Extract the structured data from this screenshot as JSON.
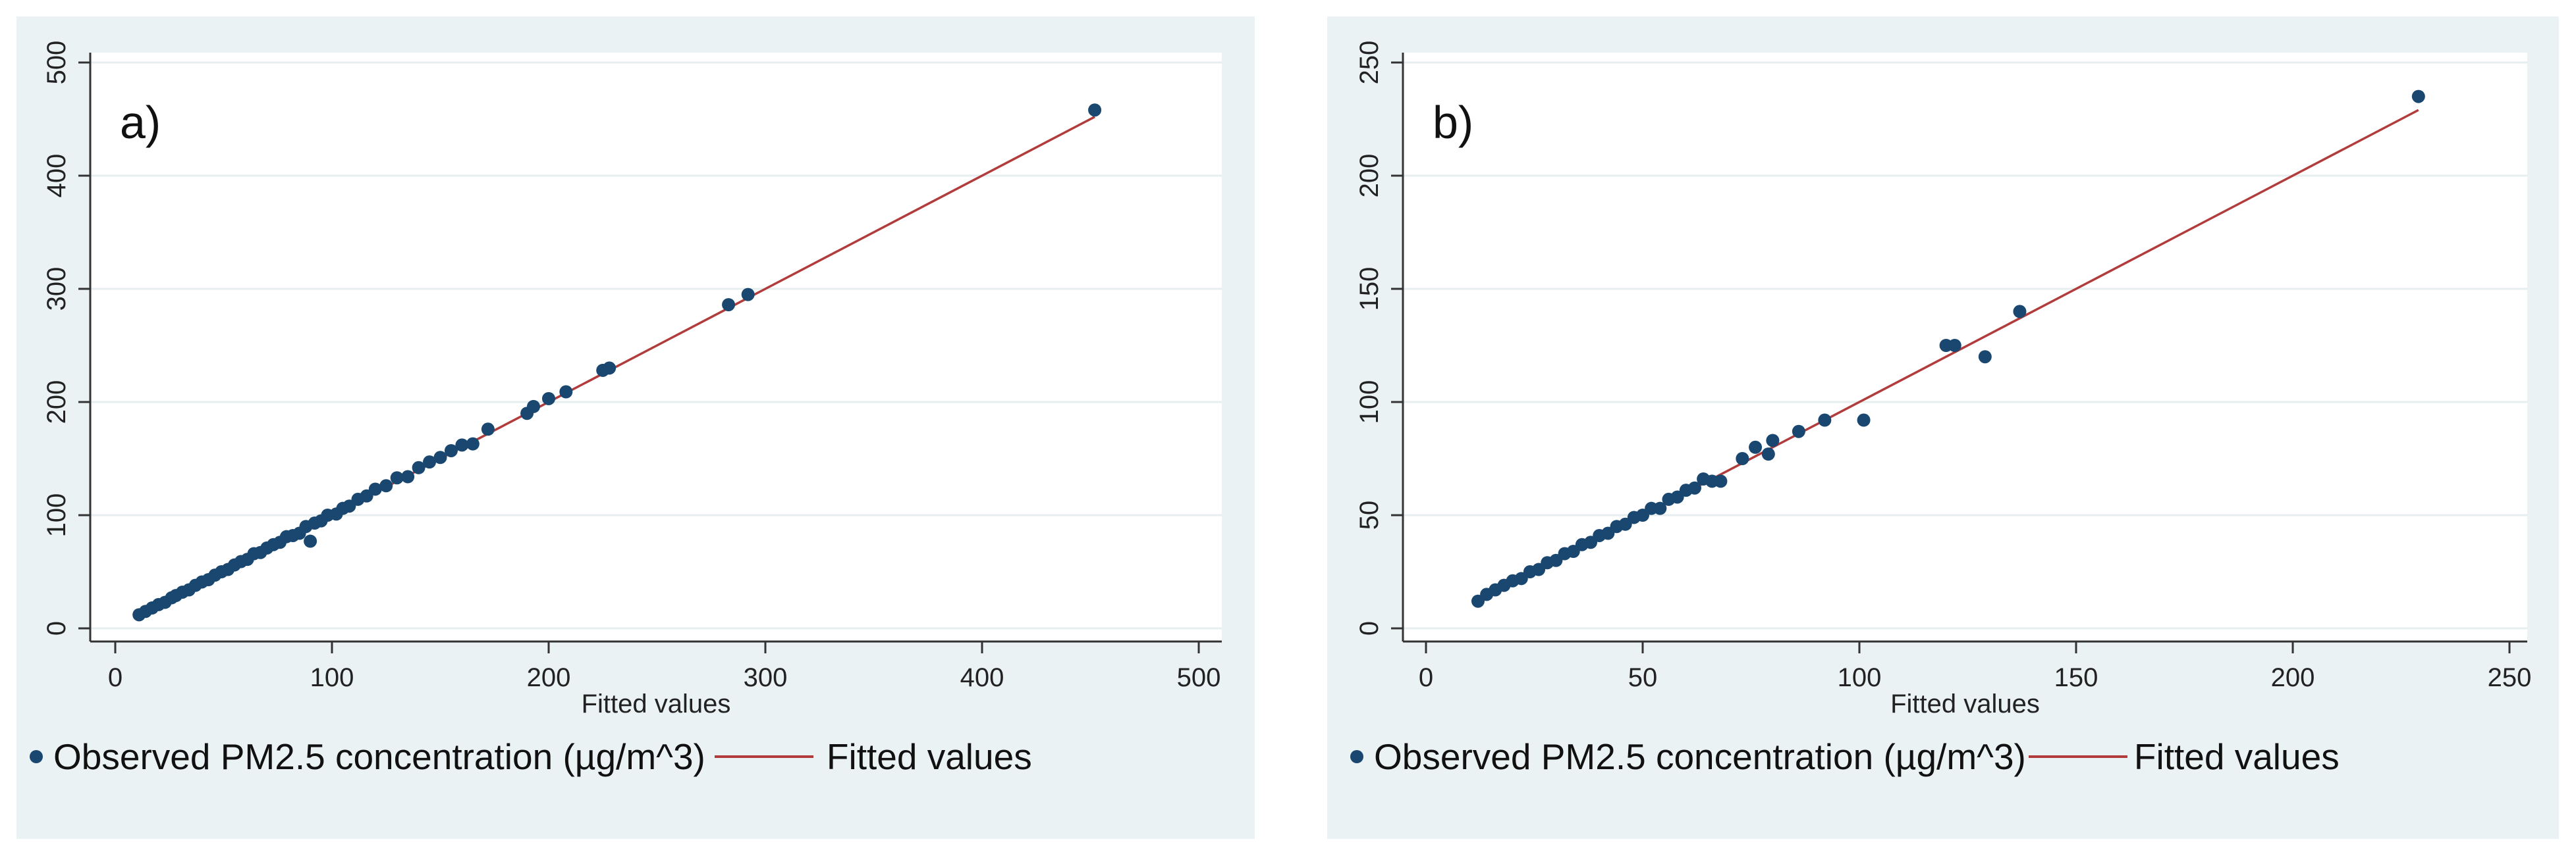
{
  "chart_data": [
    {
      "type": "scatter",
      "panel_label": "a)",
      "xlabel": "Fitted values",
      "ylabel": "",
      "xlim": [
        0,
        500
      ],
      "ylim": [
        0,
        500
      ],
      "xticks": [
        "0",
        "100",
        "200",
        "300",
        "400",
        "500"
      ],
      "yticks": [
        "0",
        "100",
        "200",
        "300",
        "400",
        "500"
      ],
      "grid": true,
      "legend": "bottom",
      "series": [
        {
          "name": "Observed PM2.5 concentration (µg/m^3)",
          "kind": "points",
          "color": "#1a476f",
          "points": [
            [
              11,
              12
            ],
            [
              14,
              15
            ],
            [
              17,
              18
            ],
            [
              20,
              21
            ],
            [
              23,
              23
            ],
            [
              26,
              27
            ],
            [
              28,
              29
            ],
            [
              31,
              32
            ],
            [
              34,
              34
            ],
            [
              37,
              38
            ],
            [
              40,
              41
            ],
            [
              43,
              43
            ],
            [
              46,
              47
            ],
            [
              49,
              50
            ],
            [
              52,
              52
            ],
            [
              55,
              56
            ],
            [
              58,
              59
            ],
            [
              61,
              61
            ],
            [
              64,
              66
            ],
            [
              67,
              67
            ],
            [
              70,
              71
            ],
            [
              73,
              74
            ],
            [
              76,
              76
            ],
            [
              79,
              81
            ],
            [
              82,
              82
            ],
            [
              85,
              84
            ],
            [
              88,
              90
            ],
            [
              90,
              77
            ],
            [
              92,
              93
            ],
            [
              95,
              95
            ],
            [
              98,
              100
            ],
            [
              102,
              101
            ],
            [
              105,
              106
            ],
            [
              108,
              108
            ],
            [
              112,
              114
            ],
            [
              116,
              117
            ],
            [
              120,
              123
            ],
            [
              125,
              126
            ],
            [
              130,
              133
            ],
            [
              135,
              134
            ],
            [
              140,
              142
            ],
            [
              145,
              147
            ],
            [
              150,
              151
            ],
            [
              155,
              157
            ],
            [
              160,
              162
            ],
            [
              165,
              163
            ],
            [
              172,
              176
            ],
            [
              190,
              190
            ],
            [
              193,
              196
            ],
            [
              200,
              203
            ],
            [
              208,
              209
            ],
            [
              225,
              228
            ],
            [
              228,
              230
            ],
            [
              283,
              286
            ],
            [
              292,
              295
            ],
            [
              452,
              458
            ]
          ]
        },
        {
          "name": "Fitted values",
          "kind": "line",
          "color": "#b23b3b",
          "points": [
            [
              10,
              10
            ],
            [
              452,
              452
            ]
          ]
        }
      ]
    },
    {
      "type": "scatter",
      "panel_label": "b)",
      "xlabel": "Fitted values",
      "ylabel": "",
      "xlim": [
        0,
        250
      ],
      "ylim": [
        0,
        250
      ],
      "xticks": [
        "0",
        "50",
        "100",
        "150",
        "200",
        "250"
      ],
      "yticks": [
        "0",
        "50",
        "100",
        "150",
        "200",
        "250"
      ],
      "grid": true,
      "legend": "bottom",
      "series": [
        {
          "name": "Observed PM2.5 concentration (µg/m^3)",
          "kind": "points",
          "color": "#1a476f",
          "points": [
            [
              12,
              12
            ],
            [
              14,
              15
            ],
            [
              16,
              17
            ],
            [
              18,
              19
            ],
            [
              20,
              21
            ],
            [
              22,
              22
            ],
            [
              24,
              25
            ],
            [
              26,
              26
            ],
            [
              28,
              29
            ],
            [
              30,
              30
            ],
            [
              32,
              33
            ],
            [
              34,
              34
            ],
            [
              36,
              37
            ],
            [
              38,
              38
            ],
            [
              40,
              41
            ],
            [
              42,
              42
            ],
            [
              44,
              45
            ],
            [
              46,
              46
            ],
            [
              48,
              49
            ],
            [
              50,
              50
            ],
            [
              52,
              53
            ],
            [
              54,
              53
            ],
            [
              56,
              57
            ],
            [
              58,
              58
            ],
            [
              60,
              61
            ],
            [
              62,
              62
            ],
            [
              64,
              66
            ],
            [
              66,
              65
            ],
            [
              68,
              65
            ],
            [
              73,
              75
            ],
            [
              76,
              80
            ],
            [
              79,
              77
            ],
            [
              80,
              83
            ],
            [
              86,
              87
            ],
            [
              92,
              92
            ],
            [
              101,
              92
            ],
            [
              120,
              125
            ],
            [
              122,
              125
            ],
            [
              129,
              120
            ],
            [
              137,
              140
            ],
            [
              229,
              235
            ]
          ]
        },
        {
          "name": "Fitted values",
          "kind": "line",
          "color": "#b23b3b",
          "points": [
            [
              12,
              12
            ],
            [
              229,
              229
            ]
          ]
        }
      ]
    }
  ]
}
